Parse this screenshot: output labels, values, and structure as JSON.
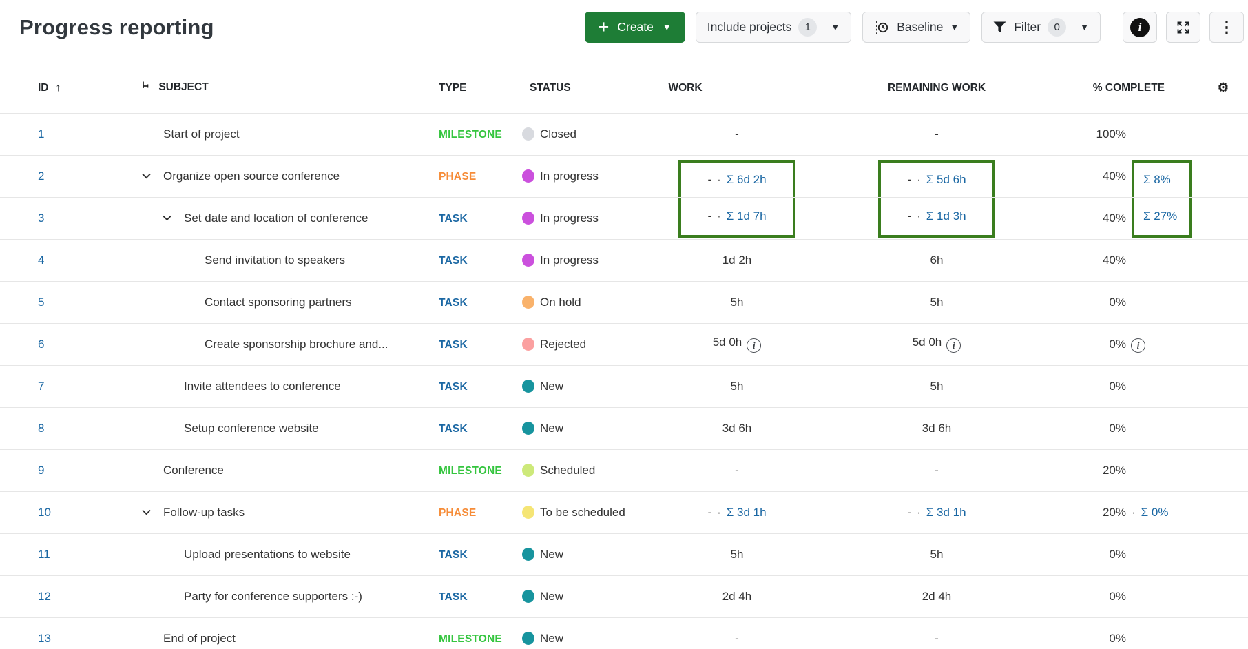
{
  "title": "Progress reporting",
  "toolbar": {
    "create_label": "Create",
    "include_projects_label": "Include projects",
    "include_projects_badge": "1",
    "baseline_label": "Baseline",
    "filter_label": "Filter",
    "filter_badge": "0",
    "icons": [
      "plus-icon",
      "caret-down-icon",
      "baseline-clock-icon",
      "funnel-icon",
      "info-icon",
      "expand-icon",
      "kebab-menu-icon"
    ]
  },
  "columns": {
    "id": "ID",
    "subject": "SUBJECT",
    "type": "TYPE",
    "status": "STATUS",
    "work": "WORK",
    "remaining": "REMAINING WORK",
    "pct": "% COMPLETE",
    "sort_icon": "↑",
    "settings_icon": "⚙"
  },
  "colors": {
    "link_blue": "#1a67a3",
    "annotation_green": "#3a7d1e",
    "create_green": "#1e7d36",
    "type_milestone": "#35c53f",
    "type_phase": "#f68c38",
    "type_task": "#1a67a3",
    "status_closed": "#d8dadf",
    "status_in_progress": "#cb50dd",
    "status_on_hold": "#f9b26b",
    "status_rejected": "#fba0a0",
    "status_new": "#17949e",
    "status_scheduled": "#cde97a",
    "status_to_be_scheduled": "#f5e575"
  },
  "rows": [
    {
      "id": "1",
      "level": 0,
      "chevron": false,
      "subject": "Start of project",
      "type": "MILESTONE",
      "type_color": "#35c53f",
      "status": "Closed",
      "status_color": "#d8dadf",
      "work": {
        "text": "-"
      },
      "remaining": {
        "text": "-"
      },
      "pct": {
        "base": "100%"
      }
    },
    {
      "id": "2",
      "level": 0,
      "chevron": true,
      "subject": "Organize open source conference",
      "type": "PHASE",
      "type_color": "#f68c38",
      "status": "In progress",
      "status_color": "#cb50dd",
      "box": "top",
      "work": {
        "dash": "-",
        "sum": "Σ 6d 2h",
        "boxed": true
      },
      "remaining": {
        "dash": "-",
        "sum": "Σ 5d 6h",
        "boxed": true
      },
      "pct": {
        "base": "40%",
        "sum": "Σ 8%",
        "boxed": true
      }
    },
    {
      "id": "3",
      "level": 1,
      "chevron": true,
      "subject": "Set date and location of conference",
      "type": "TASK",
      "type_color": "#1a67a3",
      "status": "In progress",
      "status_color": "#cb50dd",
      "box": "bottom",
      "work": {
        "dash": "-",
        "sum": "Σ 1d 7h",
        "boxed": true
      },
      "remaining": {
        "dash": "-",
        "sum": "Σ 1d 3h",
        "boxed": true
      },
      "pct": {
        "base": "40%",
        "sum": "Σ 27%",
        "boxed": true
      }
    },
    {
      "id": "4",
      "level": 2,
      "chevron": false,
      "subject": "Send invitation to speakers",
      "type": "TASK",
      "type_color": "#1a67a3",
      "status": "In progress",
      "status_color": "#cb50dd",
      "work": {
        "text": "1d 2h"
      },
      "remaining": {
        "text": "6h"
      },
      "pct": {
        "base": "40%"
      }
    },
    {
      "id": "5",
      "level": 2,
      "chevron": false,
      "subject": "Contact sponsoring partners",
      "type": "TASK",
      "type_color": "#1a67a3",
      "status": "On hold",
      "status_color": "#f9b26b",
      "work": {
        "text": "5h"
      },
      "remaining": {
        "text": "5h"
      },
      "pct": {
        "base": "0%"
      }
    },
    {
      "id": "6",
      "level": 2,
      "chevron": false,
      "subject": "Create sponsorship brochure and...",
      "type": "TASK",
      "type_color": "#1a67a3",
      "status": "Rejected",
      "status_color": "#fba0a0",
      "work": {
        "text": "5d 0h",
        "info": true
      },
      "remaining": {
        "text": "5d 0h",
        "info": true
      },
      "pct": {
        "base": "0%",
        "info": true
      }
    },
    {
      "id": "7",
      "level": 1,
      "chevron": false,
      "subject": "Invite attendees to conference",
      "type": "TASK",
      "type_color": "#1a67a3",
      "status": "New",
      "status_color": "#17949e",
      "work": {
        "text": "5h"
      },
      "remaining": {
        "text": "5h"
      },
      "pct": {
        "base": "0%"
      }
    },
    {
      "id": "8",
      "level": 1,
      "chevron": false,
      "subject": "Setup conference website",
      "type": "TASK",
      "type_color": "#1a67a3",
      "status": "New",
      "status_color": "#17949e",
      "work": {
        "text": "3d 6h"
      },
      "remaining": {
        "text": "3d 6h"
      },
      "pct": {
        "base": "0%"
      }
    },
    {
      "id": "9",
      "level": 0,
      "chevron": false,
      "subject": "Conference",
      "type": "MILESTONE",
      "type_color": "#35c53f",
      "status": "Scheduled",
      "status_color": "#cde97a",
      "work": {
        "text": "-"
      },
      "remaining": {
        "text": "-"
      },
      "pct": {
        "base": "20%"
      }
    },
    {
      "id": "10",
      "level": 0,
      "chevron": true,
      "subject": "Follow-up tasks",
      "type": "PHASE",
      "type_color": "#f68c38",
      "status": "To be scheduled",
      "status_color": "#f5e575",
      "work": {
        "dash": "-",
        "sum": "Σ 3d 1h"
      },
      "remaining": {
        "dash": "-",
        "sum": "Σ 3d 1h"
      },
      "pct": {
        "base": "20%",
        "sum": "Σ 0%",
        "dot": true
      }
    },
    {
      "id": "11",
      "level": 1,
      "chevron": false,
      "subject": "Upload presentations to website",
      "type": "TASK",
      "type_color": "#1a67a3",
      "status": "New",
      "status_color": "#17949e",
      "work": {
        "text": "5h"
      },
      "remaining": {
        "text": "5h"
      },
      "pct": {
        "base": "0%"
      }
    },
    {
      "id": "12",
      "level": 1,
      "chevron": false,
      "subject": "Party for conference supporters :-)",
      "type": "TASK",
      "type_color": "#1a67a3",
      "status": "New",
      "status_color": "#17949e",
      "work": {
        "text": "2d 4h"
      },
      "remaining": {
        "text": "2d 4h"
      },
      "pct": {
        "base": "0%"
      }
    },
    {
      "id": "13",
      "level": 0,
      "chevron": false,
      "subject": "End of project",
      "type": "MILESTONE",
      "type_color": "#35c53f",
      "status": "New",
      "status_color": "#17949e",
      "work": {
        "text": "-"
      },
      "remaining": {
        "text": "-"
      },
      "pct": {
        "base": "0%"
      }
    }
  ]
}
